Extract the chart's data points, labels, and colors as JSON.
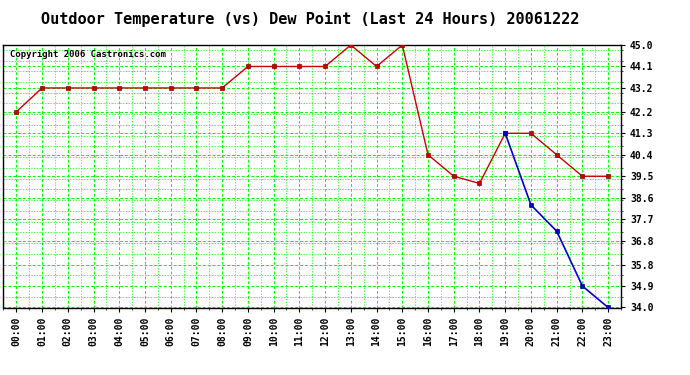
{
  "title": "Outdoor Temperature (vs) Dew Point (Last 24 Hours) 20061222",
  "copyright": "Copyright 2006 Castronics.com",
  "background_color": "#ffffff",
  "plot_bg_color": "#ffffff",
  "grid_color": "#00ff00",
  "x_labels": [
    "00:00",
    "01:00",
    "02:00",
    "03:00",
    "04:00",
    "05:00",
    "06:00",
    "07:00",
    "08:00",
    "09:00",
    "10:00",
    "11:00",
    "12:00",
    "13:00",
    "14:00",
    "15:00",
    "16:00",
    "17:00",
    "18:00",
    "19:00",
    "20:00",
    "21:00",
    "22:00",
    "23:00"
  ],
  "temp_data": [
    42.2,
    43.2,
    43.2,
    43.2,
    43.2,
    43.2,
    43.2,
    43.2,
    43.2,
    44.1,
    44.1,
    44.1,
    44.1,
    45.0,
    44.1,
    45.0,
    40.4,
    39.5,
    39.2,
    41.3,
    41.3,
    40.4,
    39.5,
    39.5
  ],
  "dew_data": [
    null,
    null,
    null,
    null,
    null,
    null,
    null,
    null,
    null,
    null,
    null,
    null,
    null,
    null,
    null,
    null,
    null,
    null,
    null,
    41.3,
    38.3,
    37.2,
    34.9,
    34.0
  ],
  "temp_color": "#cc0000",
  "dew_color": "#0000cc",
  "marker_size": 3,
  "ylim_min": 34.0,
  "ylim_max": 45.0,
  "yticks": [
    34.0,
    34.9,
    35.8,
    36.8,
    37.7,
    38.6,
    39.5,
    40.4,
    41.3,
    42.2,
    43.2,
    44.1,
    45.0
  ],
  "title_fontsize": 11,
  "tick_fontsize": 7,
  "copyright_fontsize": 6.5
}
